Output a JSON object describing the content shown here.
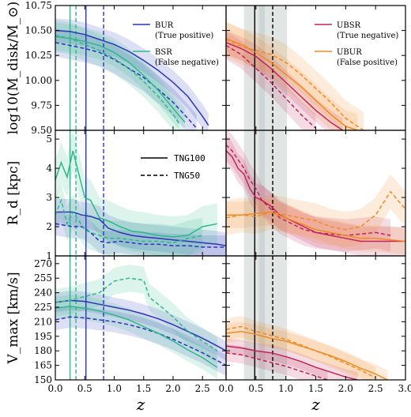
{
  "chart_data": {
    "type": "line",
    "panels_layout": "3 rows x 2 columns, shared x axis (z) per column",
    "grid": false,
    "colors": {
      "BUR": "#2b35b8",
      "BSR": "#2db88a",
      "UBSR": "#c0245a",
      "UBUR": "#f08a24",
      "marker_band": "#a9b7b5"
    },
    "columns": [
      {
        "id": "left",
        "xlim": [
          0,
          2.9
        ],
        "xticks": [
          "0.0",
          "0.5",
          "1.0",
          "1.5",
          "2.0",
          "2.5"
        ],
        "xtick_values": [
          0,
          0.5,
          1,
          1.5,
          2,
          2.5
        ],
        "xlabel": "z"
      },
      {
        "id": "right",
        "xlim": [
          0,
          3.0
        ],
        "xticks": [
          "0.0",
          "0.5",
          "1.0",
          "1.5",
          "2.0",
          "2.5",
          "3.0"
        ],
        "xtick_values": [
          0,
          0.5,
          1,
          1.5,
          2,
          2.5,
          3
        ],
        "xlabel": "z"
      }
    ],
    "rows": [
      {
        "id": "mdisk",
        "ylabel": "log10(M_disk/M_⊙)",
        "ylim": [
          9.5,
          10.75
        ],
        "yticks": [
          9.5,
          9.75,
          10.0,
          10.25,
          10.5,
          10.75
        ],
        "ytick_labels": [
          "9.50",
          "9.75",
          "10.00",
          "10.25",
          "10.50",
          "10.75"
        ]
      },
      {
        "id": "rd",
        "ylabel": "R_d [kpc]",
        "ylim": [
          1,
          5.3
        ],
        "yticks": [
          1,
          2,
          3,
          4,
          5
        ],
        "ytick_labels": [
          "1",
          "2",
          "3",
          "4",
          "5"
        ]
      },
      {
        "id": "vmax",
        "ylabel": "V_max [km/s]",
        "ylim": [
          150,
          278
        ],
        "yticks": [
          150,
          165,
          180,
          195,
          210,
          225,
          240,
          255,
          270
        ],
        "ytick_labels": [
          "150",
          "165",
          "180",
          "195",
          "210",
          "225",
          "240",
          "255",
          "270"
        ]
      }
    ],
    "legends": {
      "left_top": [
        {
          "label": "BUR",
          "sub": "(True positive)",
          "color": "#2b35b8"
        },
        {
          "label": "BSR",
          "sub": "(False negative)",
          "color": "#2db88a"
        }
      ],
      "right_top": [
        {
          "label": "UBSR",
          "sub": "(True negative)",
          "color": "#c0245a"
        },
        {
          "label": "UBUR",
          "sub": "(False positive)",
          "color": "#f08a24"
        }
      ],
      "left_mid": [
        {
          "label": "TNG100",
          "style": "solid"
        },
        {
          "label": "TNG50",
          "style": "dashed"
        }
      ]
    },
    "vertical_markers": {
      "left": [
        {
          "z": 0.25,
          "color": "#2db88a",
          "style": "solid"
        },
        {
          "z": 0.35,
          "color": "#2db88a",
          "style": "dashed"
        },
        {
          "z": 0.52,
          "color": "#2b35b8",
          "style": "solid"
        },
        {
          "z": 0.82,
          "color": "#2b35b8",
          "style": "dashed"
        }
      ],
      "right": [
        {
          "z": 0.48,
          "color": "#000000",
          "style": "solid",
          "band": [
            0.3,
            0.65
          ]
        },
        {
          "z": 0.78,
          "color": "#000000",
          "style": "dashed",
          "band": [
            0.55,
            1.02
          ]
        }
      ]
    },
    "series": [
      {
        "name": "BUR",
        "col": "left",
        "row": "mdisk",
        "style": "solid",
        "color": "#2b35b8",
        "x": [
          0,
          0.25,
          0.5,
          0.75,
          1.0,
          1.25,
          1.5,
          1.75,
          2.0,
          2.25,
          2.5,
          2.6
        ],
        "y": [
          10.5,
          10.49,
          10.46,
          10.41,
          10.36,
          10.29,
          10.2,
          10.1,
          9.98,
          9.84,
          9.64,
          9.55
        ],
        "band": 0.12
      },
      {
        "name": "BUR",
        "col": "left",
        "row": "mdisk",
        "style": "dashed",
        "color": "#2b35b8",
        "x": [
          0,
          0.25,
          0.5,
          0.75,
          1.0,
          1.25,
          1.5,
          1.75,
          2.0,
          2.25,
          2.4
        ],
        "y": [
          10.38,
          10.35,
          10.32,
          10.28,
          10.21,
          10.12,
          10.03,
          9.91,
          9.78,
          9.62,
          9.52
        ],
        "band": 0.14
      },
      {
        "name": "BSR",
        "col": "left",
        "row": "mdisk",
        "style": "solid",
        "color": "#2db88a",
        "x": [
          0,
          0.25,
          0.5,
          0.75,
          1.0,
          1.25,
          1.5,
          1.75,
          2.0,
          2.2
        ],
        "y": [
          10.44,
          10.42,
          10.39,
          10.35,
          10.28,
          10.18,
          10.05,
          9.9,
          9.72,
          9.58
        ],
        "band": 0.14
      },
      {
        "name": "BSR",
        "col": "left",
        "row": "mdisk",
        "style": "dashed",
        "color": "#2db88a",
        "x": [
          0,
          0.25,
          0.5,
          0.75,
          1.0,
          1.25,
          1.5,
          1.75,
          2.0,
          2.1
        ],
        "y": [
          10.45,
          10.42,
          10.36,
          10.3,
          10.22,
          10.12,
          9.99,
          9.84,
          9.66,
          9.57
        ],
        "band": 0.16
      },
      {
        "name": "UBSR",
        "col": "right",
        "row": "mdisk",
        "style": "solid",
        "color": "#c0245a",
        "x": [
          0,
          0.25,
          0.5,
          0.75,
          1.0,
          1.25,
          1.5,
          1.75,
          1.95
        ],
        "y": [
          10.38,
          10.32,
          10.24,
          10.12,
          9.98,
          9.84,
          9.7,
          9.58,
          9.5
        ],
        "band": 0.12
      },
      {
        "name": "UBSR",
        "col": "right",
        "row": "mdisk",
        "style": "dashed",
        "color": "#c0245a",
        "x": [
          0,
          0.25,
          0.5,
          0.75,
          1.0,
          1.25,
          1.5
        ],
        "y": [
          10.35,
          10.26,
          10.12,
          9.98,
          9.82,
          9.66,
          9.52
        ],
        "band": 0.14
      },
      {
        "name": "UBUR",
        "col": "right",
        "row": "mdisk",
        "style": "solid",
        "color": "#f08a24",
        "x": [
          0,
          0.25,
          0.5,
          0.75,
          1.0,
          1.25,
          1.5,
          1.75,
          2.0,
          2.2
        ],
        "y": [
          10.42,
          10.36,
          10.28,
          10.18,
          10.06,
          9.94,
          9.8,
          9.66,
          9.54,
          9.5
        ],
        "band": 0.16
      },
      {
        "name": "UBUR",
        "col": "right",
        "row": "mdisk",
        "style": "dashed",
        "color": "#f08a24",
        "x": [
          0,
          0.25,
          0.5,
          0.75,
          1.0,
          1.25,
          1.5,
          1.75,
          2.0,
          2.3
        ],
        "y": [
          10.41,
          10.34,
          10.3,
          10.26,
          10.18,
          10.06,
          9.92,
          9.78,
          9.62,
          9.5
        ],
        "band": 0.18
      },
      {
        "name": "BUR",
        "col": "left",
        "row": "rd",
        "style": "solid",
        "color": "#2b35b8",
        "x": [
          0,
          0.15,
          0.3,
          0.45,
          0.6,
          0.75,
          0.9,
          1.1,
          1.3,
          1.5,
          1.75,
          2.0,
          2.25,
          2.5,
          2.75,
          2.9
        ],
        "y": [
          2.5,
          2.5,
          2.5,
          2.4,
          2.35,
          2.25,
          1.95,
          1.8,
          1.7,
          1.65,
          1.6,
          1.55,
          1.5,
          1.45,
          1.4,
          1.35
        ],
        "band": 0.45
      },
      {
        "name": "BUR",
        "col": "left",
        "row": "rd",
        "style": "dashed",
        "color": "#2b35b8",
        "x": [
          0,
          0.15,
          0.3,
          0.45,
          0.6,
          0.75,
          0.9,
          1.1,
          1.3,
          1.5,
          1.75,
          2.0,
          2.25,
          2.5,
          2.75,
          2.9
        ],
        "y": [
          2.1,
          2.05,
          2.0,
          2.0,
          1.8,
          1.5,
          1.45,
          1.5,
          1.45,
          1.4,
          1.4,
          1.35,
          1.35,
          1.3,
          1.3,
          1.3
        ],
        "band": 0.4
      },
      {
        "name": "BSR",
        "col": "left",
        "row": "rd",
        "style": "solid",
        "color": "#2db88a",
        "x": [
          0,
          0.1,
          0.2,
          0.3,
          0.4,
          0.5,
          0.6,
          0.75,
          0.9,
          1.1,
          1.3,
          1.5,
          1.75,
          2.0,
          2.25,
          2.5,
          2.75
        ],
        "y": [
          3.6,
          4.2,
          3.7,
          4.6,
          3.8,
          3.0,
          2.9,
          2.3,
          2.2,
          2.0,
          1.85,
          1.8,
          1.7,
          1.65,
          1.7,
          2.0,
          2.1
        ],
        "band": 0.7
      },
      {
        "name": "BSR",
        "col": "left",
        "row": "rd",
        "style": "dashed",
        "color": "#2db88a",
        "x": [
          0,
          0.1,
          0.2,
          0.3,
          0.4,
          0.5,
          0.6,
          0.75,
          0.9,
          1.1,
          1.3,
          1.5,
          1.75,
          2.0,
          2.25,
          2.5
        ],
        "y": [
          2.4,
          2.9,
          2.1,
          2.5,
          2.2,
          1.9,
          1.8,
          1.7,
          1.6,
          1.6,
          1.55,
          1.5,
          1.5,
          1.45,
          1.6,
          1.7
        ],
        "band": 0.6
      },
      {
        "name": "UBSR",
        "col": "right",
        "row": "rd",
        "style": "solid",
        "color": "#c0245a",
        "x": [
          0,
          0.1,
          0.2,
          0.3,
          0.4,
          0.5,
          0.6,
          0.75,
          0.9,
          1.1,
          1.3,
          1.5,
          1.75,
          2.0,
          2.25,
          2.5,
          2.75,
          3.0
        ],
        "y": [
          4.6,
          4.4,
          4.0,
          3.8,
          3.3,
          3.0,
          2.9,
          2.7,
          2.4,
          2.2,
          2.0,
          1.8,
          1.7,
          1.6,
          1.5,
          1.5,
          1.5,
          1.5
        ],
        "band": 0.5
      },
      {
        "name": "UBSR",
        "col": "right",
        "row": "rd",
        "style": "dashed",
        "color": "#c0245a",
        "x": [
          0,
          0.1,
          0.2,
          0.3,
          0.4,
          0.5,
          0.6,
          0.75,
          0.9,
          1.1,
          1.3,
          1.5,
          1.75,
          2.0,
          2.25,
          2.5,
          2.75
        ],
        "y": [
          4.8,
          4.6,
          4.3,
          4.0,
          3.6,
          3.3,
          2.9,
          2.6,
          2.3,
          2.1,
          1.9,
          1.8,
          1.75,
          1.7,
          1.75,
          1.8,
          1.7
        ],
        "band": 0.55
      },
      {
        "name": "UBUR",
        "col": "right",
        "row": "rd",
        "style": "solid",
        "color": "#f08a24",
        "x": [
          0,
          0.25,
          0.5,
          0.75,
          1.0,
          1.25,
          1.5,
          1.75,
          2.0,
          2.25,
          2.5,
          2.75,
          3.0
        ],
        "y": [
          2.4,
          2.4,
          2.45,
          2.5,
          2.3,
          2.1,
          1.9,
          1.8,
          1.7,
          1.6,
          1.6,
          1.55,
          1.5
        ],
        "band": 0.45
      },
      {
        "name": "UBUR",
        "col": "right",
        "row": "rd",
        "style": "dashed",
        "color": "#f08a24",
        "x": [
          0,
          0.25,
          0.5,
          0.75,
          1.0,
          1.25,
          1.5,
          1.75,
          2.0,
          2.25,
          2.5,
          2.75,
          3.0
        ],
        "y": [
          2.3,
          2.4,
          2.35,
          2.5,
          2.4,
          2.3,
          2.2,
          2.0,
          1.9,
          2.0,
          2.4,
          3.2,
          2.6
        ],
        "band": 0.6
      },
      {
        "name": "BUR",
        "col": "left",
        "row": "vmax",
        "style": "solid",
        "color": "#2b35b8",
        "x": [
          0,
          0.25,
          0.5,
          0.75,
          1.0,
          1.25,
          1.5,
          1.75,
          2.0,
          2.25,
          2.5,
          2.75,
          2.9
        ],
        "y": [
          230,
          232,
          231,
          228,
          225,
          222,
          218,
          213,
          207,
          200,
          193,
          185,
          180
        ],
        "band": 10
      },
      {
        "name": "BUR",
        "col": "left",
        "row": "vmax",
        "style": "dashed",
        "color": "#2b35b8",
        "x": [
          0,
          0.25,
          0.5,
          0.75,
          1.0,
          1.25,
          1.5,
          1.75,
          2.0,
          2.25,
          2.5,
          2.75,
          2.9
        ],
        "y": [
          212,
          215,
          214,
          212,
          210,
          207,
          203,
          198,
          192,
          185,
          178,
          170,
          165
        ],
        "band": 11
      },
      {
        "name": "BSR",
        "col": "left",
        "row": "vmax",
        "style": "solid",
        "color": "#2db88a",
        "x": [
          0,
          0.25,
          0.5,
          0.75,
          1.0,
          1.25,
          1.5,
          1.75,
          2.0,
          2.25,
          2.5,
          2.75
        ],
        "y": [
          224,
          226,
          224,
          221,
          217,
          212,
          205,
          198,
          190,
          181,
          173,
          163
        ],
        "band": 12
      },
      {
        "name": "BSR",
        "col": "left",
        "row": "vmax",
        "style": "dashed",
        "color": "#2db88a",
        "x": [
          0,
          0.25,
          0.5,
          0.75,
          1.0,
          1.25,
          1.5,
          1.6,
          1.75,
          2.0,
          2.25,
          2.5,
          2.75
        ],
        "y": [
          230,
          232,
          236,
          240,
          252,
          255,
          253,
          235,
          228,
          215,
          200,
          190,
          180
        ],
        "band": 14
      },
      {
        "name": "UBSR",
        "col": "right",
        "row": "vmax",
        "style": "solid",
        "color": "#c0245a",
        "x": [
          0,
          0.25,
          0.5,
          0.75,
          1.0,
          1.25,
          1.5,
          1.75,
          2.0,
          2.2
        ],
        "y": [
          185,
          183,
          180,
          178,
          174,
          169,
          163,
          158,
          153,
          150
        ],
        "band": 8
      },
      {
        "name": "UBSR",
        "col": "right",
        "row": "vmax",
        "style": "dashed",
        "color": "#c0245a",
        "x": [
          0,
          0.25,
          0.5,
          0.75,
          1.0,
          1.25,
          1.5,
          1.7
        ],
        "y": [
          178,
          176,
          172,
          168,
          164,
          159,
          154,
          150
        ],
        "band": 9
      },
      {
        "name": "UBUR",
        "col": "right",
        "row": "vmax",
        "style": "solid",
        "color": "#f08a24",
        "x": [
          0,
          0.25,
          0.5,
          0.75,
          1.0,
          1.25,
          1.5,
          1.75,
          2.0,
          2.25,
          2.5,
          2.7
        ],
        "y": [
          198,
          200,
          197,
          193,
          190,
          185,
          180,
          175,
          169,
          162,
          156,
          150
        ],
        "band": 10
      },
      {
        "name": "UBUR",
        "col": "right",
        "row": "vmax",
        "style": "dashed",
        "color": "#f08a24",
        "x": [
          0,
          0.25,
          0.5,
          0.75,
          1.0,
          1.25,
          1.5,
          1.75,
          2.0,
          2.25,
          2.5
        ],
        "y": [
          202,
          205,
          200,
          196,
          192,
          186,
          180,
          174,
          167,
          160,
          152
        ],
        "band": 11
      }
    ]
  }
}
